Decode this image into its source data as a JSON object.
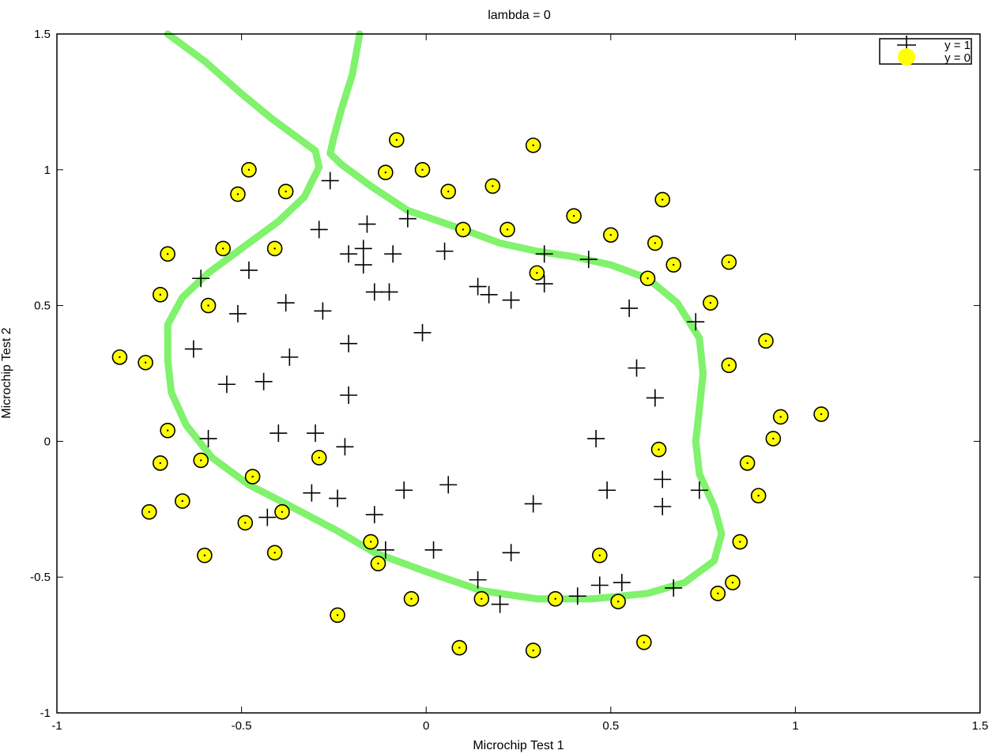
{
  "chart_data": {
    "type": "scatter",
    "title": "lambda = 0",
    "xlabel": "Microchip Test 1",
    "ylabel": "Microchip Test 2",
    "xlim": [
      -1,
      1.5
    ],
    "ylim": [
      -1,
      1.5
    ],
    "xticks": [
      "-1",
      "-0.5",
      "0",
      "0.5",
      "1",
      "1.5"
    ],
    "yticks": [
      "-1",
      "-0.5",
      "0",
      "0.5",
      "1",
      "1.5"
    ],
    "grid": false,
    "legend": {
      "placement": "top-right",
      "entries": [
        "y = 1",
        "y = 0"
      ]
    },
    "colors": {
      "y0_fill": "#ffff00",
      "marker_stroke": "#000000",
      "boundary": "#80f26c"
    },
    "series": [
      {
        "name": "y = 1",
        "marker": "plus",
        "points": [
          [
            -0.26,
            0.96
          ],
          [
            -0.29,
            0.78
          ],
          [
            -0.16,
            0.8
          ],
          [
            -0.05,
            0.82
          ],
          [
            -0.21,
            0.69
          ],
          [
            -0.17,
            0.71
          ],
          [
            -0.09,
            0.69
          ],
          [
            0.05,
            0.7
          ],
          [
            -0.17,
            0.65
          ],
          [
            -0.48,
            0.63
          ],
          [
            -0.61,
            0.6
          ],
          [
            -0.14,
            0.55
          ],
          [
            -0.1,
            0.55
          ],
          [
            0.14,
            0.57
          ],
          [
            0.17,
            0.54
          ],
          [
            0.23,
            0.52
          ],
          [
            0.32,
            0.58
          ],
          [
            0.32,
            0.69
          ],
          [
            0.44,
            0.67
          ],
          [
            -0.38,
            0.51
          ],
          [
            -0.28,
            0.48
          ],
          [
            -0.51,
            0.47
          ],
          [
            -0.01,
            0.4
          ],
          [
            0.55,
            0.49
          ],
          [
            0.73,
            0.44
          ],
          [
            -0.63,
            0.34
          ],
          [
            -0.37,
            0.31
          ],
          [
            -0.21,
            0.36
          ],
          [
            -0.54,
            0.21
          ],
          [
            -0.44,
            0.22
          ],
          [
            -0.21,
            0.17
          ],
          [
            0.57,
            0.27
          ],
          [
            0.62,
            0.16
          ],
          [
            -0.59,
            0.01
          ],
          [
            -0.4,
            0.03
          ],
          [
            -0.3,
            0.03
          ],
          [
            -0.22,
            -0.02
          ],
          [
            0.46,
            0.01
          ],
          [
            0.64,
            -0.14
          ],
          [
            0.74,
            -0.18
          ],
          [
            -0.31,
            -0.19
          ],
          [
            -0.24,
            -0.21
          ],
          [
            -0.06,
            -0.18
          ],
          [
            0.06,
            -0.16
          ],
          [
            0.29,
            -0.23
          ],
          [
            0.49,
            -0.18
          ],
          [
            0.64,
            -0.24
          ],
          [
            -0.43,
            -0.28
          ],
          [
            -0.14,
            -0.27
          ],
          [
            -0.11,
            -0.4
          ],
          [
            0.02,
            -0.4
          ],
          [
            0.23,
            -0.41
          ],
          [
            0.14,
            -0.51
          ],
          [
            0.41,
            -0.57
          ],
          [
            0.47,
            -0.53
          ],
          [
            0.53,
            -0.52
          ],
          [
            0.67,
            -0.54
          ],
          [
            0.2,
            -0.6
          ]
        ]
      },
      {
        "name": "y = 0",
        "marker": "circle",
        "points": [
          [
            -0.08,
            1.11
          ],
          [
            0.29,
            1.09
          ],
          [
            -0.48,
            1.0
          ],
          [
            -0.11,
            0.99
          ],
          [
            -0.01,
            1.0
          ],
          [
            -0.51,
            0.91
          ],
          [
            -0.38,
            0.92
          ],
          [
            0.06,
            0.92
          ],
          [
            0.18,
            0.94
          ],
          [
            0.64,
            0.89
          ],
          [
            0.4,
            0.83
          ],
          [
            0.1,
            0.78
          ],
          [
            0.22,
            0.78
          ],
          [
            0.5,
            0.76
          ],
          [
            0.62,
            0.73
          ],
          [
            -0.7,
            0.69
          ],
          [
            -0.55,
            0.71
          ],
          [
            -0.41,
            0.71
          ],
          [
            0.82,
            0.66
          ],
          [
            0.67,
            0.65
          ],
          [
            0.3,
            0.62
          ],
          [
            0.6,
            0.6
          ],
          [
            -0.72,
            0.54
          ],
          [
            -0.59,
            0.5
          ],
          [
            0.77,
            0.51
          ],
          [
            0.92,
            0.37
          ],
          [
            -0.83,
            0.31
          ],
          [
            -0.76,
            0.29
          ],
          [
            0.82,
            0.28
          ],
          [
            1.07,
            0.1
          ],
          [
            0.96,
            0.09
          ],
          [
            0.94,
            0.01
          ],
          [
            -0.7,
            0.04
          ],
          [
            -0.29,
            -0.06
          ],
          [
            0.63,
            -0.03
          ],
          [
            -0.61,
            -0.07
          ],
          [
            -0.72,
            -0.08
          ],
          [
            0.87,
            -0.08
          ],
          [
            -0.47,
            -0.13
          ],
          [
            0.9,
            -0.2
          ],
          [
            -0.66,
            -0.22
          ],
          [
            -0.75,
            -0.26
          ],
          [
            -0.39,
            -0.26
          ],
          [
            -0.49,
            -0.3
          ],
          [
            -0.15,
            -0.37
          ],
          [
            0.85,
            -0.37
          ],
          [
            -0.6,
            -0.42
          ],
          [
            -0.41,
            -0.41
          ],
          [
            0.47,
            -0.42
          ],
          [
            -0.13,
            -0.45
          ],
          [
            0.83,
            -0.52
          ],
          [
            0.79,
            -0.56
          ],
          [
            -0.04,
            -0.58
          ],
          [
            0.15,
            -0.58
          ],
          [
            0.35,
            -0.58
          ],
          [
            0.52,
            -0.59
          ],
          [
            -0.24,
            -0.64
          ],
          [
            0.59,
            -0.74
          ],
          [
            0.09,
            -0.76
          ],
          [
            0.29,
            -0.77
          ]
        ]
      }
    ],
    "decision_boundary": [
      [
        [
          -0.7,
          1.5
        ],
        [
          -0.6,
          1.4
        ],
        [
          -0.5,
          1.28
        ],
        [
          -0.42,
          1.19
        ],
        [
          -0.35,
          1.12
        ],
        [
          -0.3,
          1.07
        ],
        [
          -0.29,
          1.01
        ],
        [
          -0.33,
          0.9
        ],
        [
          -0.4,
          0.81
        ],
        [
          -0.5,
          0.71
        ],
        [
          -0.59,
          0.62
        ],
        [
          -0.66,
          0.53
        ],
        [
          -0.7,
          0.43
        ],
        [
          -0.7,
          0.3
        ],
        [
          -0.69,
          0.18
        ],
        [
          -0.65,
          0.06
        ],
        [
          -0.58,
          -0.06
        ],
        [
          -0.48,
          -0.16
        ],
        [
          -0.38,
          -0.23
        ],
        [
          -0.24,
          -0.33
        ],
        [
          -0.14,
          -0.41
        ],
        [
          0.0,
          -0.48
        ],
        [
          0.15,
          -0.55
        ],
        [
          0.3,
          -0.58
        ],
        [
          0.45,
          -0.58
        ],
        [
          0.6,
          -0.56
        ],
        [
          0.7,
          -0.52
        ],
        [
          0.78,
          -0.44
        ],
        [
          0.8,
          -0.34
        ],
        [
          0.78,
          -0.24
        ],
        [
          0.74,
          -0.12
        ],
        [
          0.73,
          0.0
        ],
        [
          0.74,
          0.12
        ],
        [
          0.75,
          0.25
        ],
        [
          0.74,
          0.38
        ],
        [
          0.68,
          0.51
        ],
        [
          0.6,
          0.6
        ],
        [
          0.5,
          0.65
        ],
        [
          0.4,
          0.68
        ],
        [
          0.3,
          0.7
        ],
        [
          0.2,
          0.73
        ],
        [
          0.1,
          0.78
        ],
        [
          -0.05,
          0.85
        ],
        [
          -0.15,
          0.94
        ],
        [
          -0.23,
          1.02
        ],
        [
          -0.26,
          1.06
        ],
        [
          -0.25,
          1.12
        ],
        [
          -0.23,
          1.22
        ],
        [
          -0.2,
          1.35
        ],
        [
          -0.18,
          1.5
        ]
      ]
    ]
  }
}
